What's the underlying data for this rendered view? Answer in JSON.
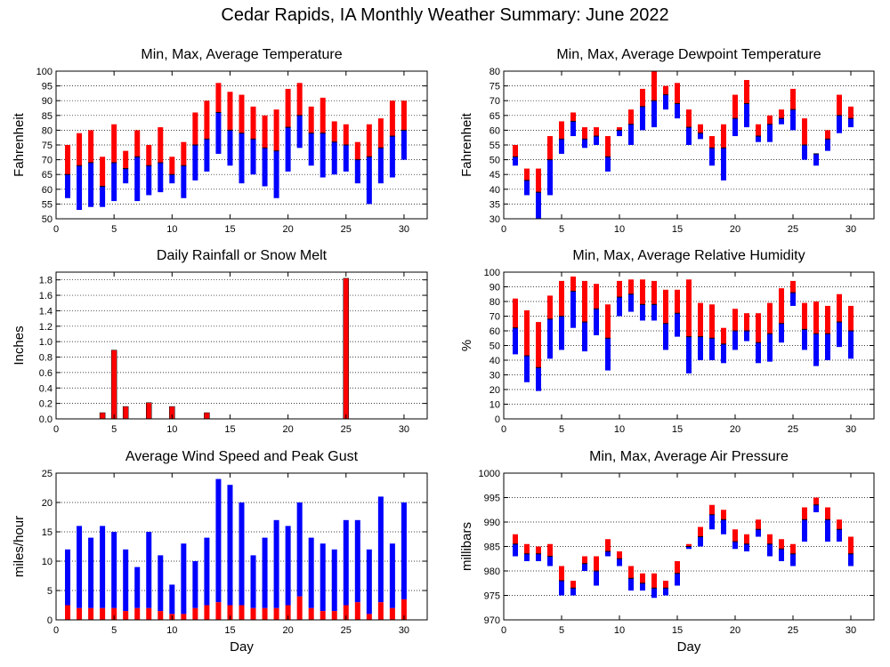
{
  "title": "Cedar Rapids, IA Monthly Weather Summary: June 2022",
  "colors": {
    "max_part": "#ff0000",
    "min_part": "#0000ff",
    "frame": "#000000",
    "grid": "#000000"
  },
  "chart_data": [
    {
      "id": "temperature",
      "type": "bar",
      "title": "Min, Max, Average Temperature",
      "xlabel": "",
      "ylabel": "Fahrenheit",
      "xlim": [
        0,
        32
      ],
      "ylim": [
        50,
        100
      ],
      "xticks": [
        0,
        5,
        10,
        15,
        20,
        25,
        30
      ],
      "yticks": [
        50,
        55,
        60,
        65,
        70,
        75,
        80,
        85,
        90,
        95,
        100
      ],
      "grid": true,
      "style": "min-avg-max",
      "x": [
        1,
        2,
        3,
        4,
        5,
        6,
        7,
        8,
        9,
        10,
        11,
        12,
        13,
        14,
        15,
        16,
        17,
        18,
        19,
        20,
        21,
        22,
        23,
        24,
        25,
        26,
        27,
        28,
        29,
        30
      ],
      "min": [
        57,
        53,
        54,
        54,
        56,
        62,
        56,
        58,
        59,
        62,
        57,
        63,
        66,
        72,
        68,
        62,
        65,
        61,
        57,
        66,
        74,
        68,
        64,
        65,
        66,
        62,
        55,
        62,
        64,
        70
      ],
      "avg": [
        65,
        68,
        69,
        61,
        69,
        67,
        71,
        68,
        69,
        65,
        68,
        75,
        77,
        86,
        80,
        79,
        77,
        74,
        73,
        81,
        85,
        79,
        79,
        76,
        75,
        70,
        71,
        74,
        78,
        80
      ],
      "max": [
        75,
        79,
        80,
        71,
        82,
        73,
        80,
        75,
        81,
        71,
        76,
        86,
        90,
        96,
        93,
        92,
        88,
        85,
        87,
        94,
        96,
        88,
        91,
        83,
        82,
        76,
        82,
        84,
        90,
        90
      ]
    },
    {
      "id": "dewpoint",
      "type": "bar",
      "title": "Min, Max, Average Dewpoint Temperature",
      "xlabel": "",
      "ylabel": "Fahrenheit",
      "xlim": [
        0,
        32
      ],
      "ylim": [
        30,
        80
      ],
      "xticks": [
        0,
        5,
        10,
        15,
        20,
        25,
        30
      ],
      "yticks": [
        30,
        35,
        40,
        45,
        50,
        55,
        60,
        65,
        70,
        75,
        80
      ],
      "grid": true,
      "style": "min-avg-max",
      "x": [
        1,
        2,
        3,
        4,
        5,
        6,
        7,
        8,
        9,
        10,
        11,
        12,
        13,
        14,
        15,
        16,
        17,
        18,
        19,
        20,
        21,
        22,
        23,
        24,
        25,
        26,
        27,
        28,
        29,
        30
      ],
      "min": [
        48,
        38,
        30,
        38,
        52,
        58,
        54,
        55,
        46,
        58,
        55,
        60,
        61,
        67,
        64,
        55,
        57,
        48,
        43,
        58,
        61,
        56,
        56,
        62,
        60,
        50,
        48,
        53,
        59,
        61
      ],
      "avg": [
        51,
        43,
        39,
        50,
        57,
        63,
        57,
        58,
        51,
        60,
        62,
        68,
        70,
        72,
        69,
        61,
        59,
        54,
        54,
        64,
        69,
        58,
        62,
        64,
        67,
        55,
        52,
        57,
        65,
        64
      ],
      "max": [
        55,
        47,
        47,
        58,
        63,
        66,
        61,
        61,
        58,
        61,
        67,
        74,
        80,
        75,
        76,
        67,
        62,
        58,
        62,
        72,
        77,
        62,
        65,
        67,
        74,
        64,
        52,
        60,
        72,
        68
      ]
    },
    {
      "id": "rainfall",
      "type": "bar",
      "title": "Daily Rainfall or Snow Melt",
      "xlabel": "",
      "ylabel": "Inches",
      "xlim": [
        0,
        32
      ],
      "ylim": [
        0,
        1.9
      ],
      "xticks": [
        0,
        5,
        10,
        15,
        20,
        25,
        30
      ],
      "yticks": [
        0,
        0.2,
        0.4,
        0.6,
        0.8,
        1,
        1.2,
        1.4,
        1.6,
        1.8
      ],
      "ytick_labels": [
        "0.0",
        "0.2",
        "0.4",
        "0.6",
        "0.8",
        "1.0",
        "1.2",
        "1.4",
        "1.6",
        "1.8"
      ],
      "grid": true,
      "style": "single",
      "x": [
        4,
        5,
        6,
        8,
        10,
        13,
        25
      ],
      "values": [
        0.08,
        0.89,
        0.16,
        0.21,
        0.16,
        0.08,
        1.82
      ]
    },
    {
      "id": "humidity",
      "type": "bar",
      "title": "Min, Max, Average Relative Humidity",
      "xlabel": "",
      "ylabel": "%",
      "xlim": [
        0,
        32
      ],
      "ylim": [
        0,
        100
      ],
      "xticks": [
        0,
        5,
        10,
        15,
        20,
        25,
        30
      ],
      "yticks": [
        0,
        10,
        20,
        30,
        40,
        50,
        60,
        70,
        80,
        90,
        100
      ],
      "grid": true,
      "style": "min-avg-max",
      "x": [
        1,
        2,
        3,
        4,
        5,
        6,
        7,
        8,
        9,
        10,
        11,
        12,
        13,
        14,
        15,
        16,
        17,
        18,
        19,
        20,
        21,
        22,
        23,
        24,
        25,
        26,
        27,
        28,
        29,
        30
      ],
      "min": [
        44,
        25,
        19,
        41,
        47,
        62,
        46,
        57,
        33,
        70,
        73,
        67,
        67,
        47,
        56,
        31,
        40,
        40,
        38,
        47,
        53,
        38,
        39,
        52,
        77,
        47,
        36,
        40,
        49,
        41
      ],
      "avg": [
        62,
        43,
        35,
        68,
        70,
        87,
        66,
        75,
        55,
        83,
        85,
        78,
        78,
        65,
        72,
        56,
        56,
        55,
        51,
        60,
        60,
        52,
        58,
        65,
        86,
        61,
        58,
        58,
        66,
        60
      ],
      "max": [
        82,
        74,
        66,
        84,
        94,
        97,
        94,
        92,
        78,
        94,
        95,
        95,
        94,
        88,
        88,
        95,
        79,
        78,
        62,
        75,
        72,
        72,
        79,
        89,
        94,
        79,
        80,
        77,
        85,
        77
      ]
    },
    {
      "id": "wind",
      "type": "bar",
      "title": "Average Wind Speed and Peak Gust",
      "xlabel": "Day",
      "ylabel": "miles/hour",
      "xlim": [
        0,
        32
      ],
      "ylim": [
        0,
        25
      ],
      "xticks": [
        0,
        5,
        10,
        15,
        20,
        25,
        30
      ],
      "yticks": [
        0,
        5,
        10,
        15,
        20,
        25
      ],
      "grid": true,
      "style": "avg-peak",
      "x": [
        1,
        2,
        3,
        4,
        5,
        6,
        7,
        8,
        9,
        10,
        11,
        12,
        13,
        14,
        15,
        16,
        17,
        18,
        19,
        20,
        21,
        22,
        23,
        24,
        25,
        26,
        27,
        28,
        29,
        30
      ],
      "avg": [
        2.5,
        2,
        2,
        2,
        2,
        1.5,
        2,
        2,
        1.5,
        1,
        1,
        2,
        2.5,
        3,
        2.5,
        2.5,
        2,
        2,
        2,
        2.5,
        4,
        2,
        1.5,
        1.5,
        2.5,
        3,
        1,
        3,
        2,
        3.5
      ],
      "peak": [
        12,
        16,
        14,
        16,
        15,
        12,
        9,
        15,
        11,
        6,
        13,
        10,
        14,
        24,
        23,
        20,
        11,
        14,
        17,
        16,
        20,
        14,
        13,
        12,
        17,
        17,
        12,
        21,
        13,
        20
      ]
    },
    {
      "id": "pressure",
      "type": "bar",
      "title": "Min, Max, Average Air Pressure",
      "xlabel": "Day",
      "ylabel": "millibars",
      "xlim": [
        0,
        32
      ],
      "ylim": [
        970,
        1000
      ],
      "xticks": [
        0,
        5,
        10,
        15,
        20,
        25,
        30
      ],
      "yticks": [
        970,
        975,
        980,
        985,
        990,
        995,
        1000
      ],
      "grid": true,
      "style": "min-avg-max",
      "x": [
        1,
        2,
        3,
        4,
        5,
        6,
        7,
        8,
        9,
        10,
        11,
        12,
        13,
        14,
        15,
        16,
        17,
        18,
        19,
        20,
        21,
        22,
        23,
        24,
        25,
        26,
        27,
        28,
        29,
        30
      ],
      "min": [
        983,
        982,
        982,
        981,
        975,
        975,
        980,
        977,
        983,
        981,
        976,
        976,
        974.5,
        975,
        977,
        984.5,
        985,
        988.5,
        987.5,
        984.5,
        984,
        987,
        983,
        982,
        981,
        986,
        992,
        986,
        986,
        981
      ],
      "avg": [
        985.5,
        983.5,
        983.5,
        983,
        978,
        976.5,
        981.5,
        980,
        984,
        982.5,
        978.5,
        977.5,
        976.5,
        976.5,
        979.5,
        985,
        987,
        991.5,
        990.5,
        986,
        985.5,
        988.5,
        985.5,
        984.5,
        983.5,
        990.5,
        993.5,
        990.5,
        988.5,
        983.5
      ],
      "max": [
        987.5,
        985.5,
        985,
        985.5,
        981,
        978,
        983,
        983,
        986.5,
        984,
        981,
        979.5,
        979.5,
        978,
        982,
        985.5,
        989,
        993.5,
        992.5,
        988.5,
        987.5,
        990.5,
        987.5,
        986.5,
        985.5,
        993,
        995,
        993,
        990.5,
        987
      ]
    }
  ]
}
